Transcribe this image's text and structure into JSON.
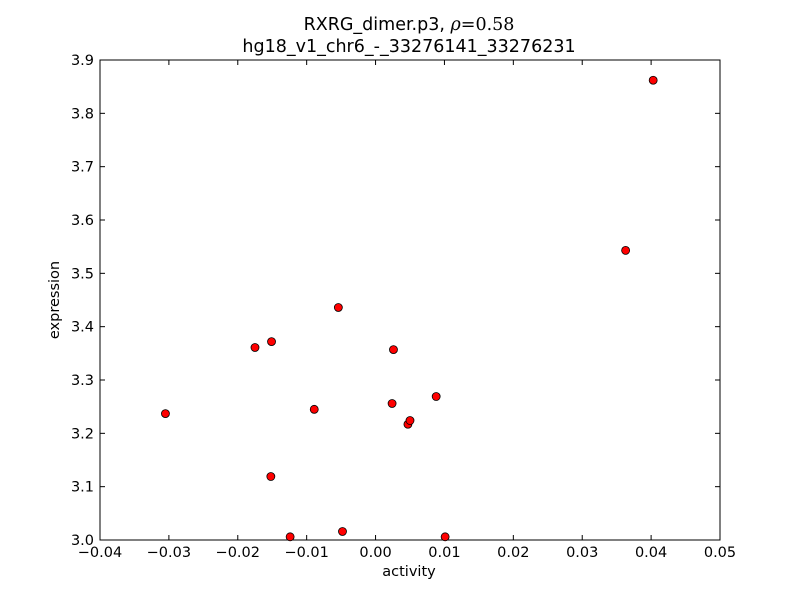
{
  "chart_data": {
    "type": "scatter",
    "title": {
      "line1_prefix": "RXRG_dimer.p3, ",
      "rho_symbol": "ρ",
      "rho_equals": "=",
      "rho_value": "0.58",
      "line2": "hg18_v1_chr6_-_33276141_33276231"
    },
    "xlabel": "activity",
    "ylabel": "expression",
    "xlim": [
      -0.04,
      0.05
    ],
    "ylim": [
      3.0,
      3.9
    ],
    "xticks": [
      -0.04,
      -0.03,
      -0.02,
      -0.01,
      0.0,
      0.01,
      0.02,
      0.03,
      0.04,
      0.05
    ],
    "xtick_labels": [
      "−0.04",
      "−0.03",
      "−0.02",
      "−0.01",
      "0.00",
      "0.01",
      "0.02",
      "0.03",
      "0.04",
      "0.05"
    ],
    "yticks": [
      3.0,
      3.1,
      3.2,
      3.3,
      3.4,
      3.5,
      3.6,
      3.7,
      3.8,
      3.9
    ],
    "ytick_labels": [
      "3.0",
      "3.1",
      "3.2",
      "3.3",
      "3.4",
      "3.5",
      "3.6",
      "3.7",
      "3.8",
      "3.9"
    ],
    "grid": false,
    "marker_color": "#ff0000",
    "marker_edge_color": "#000000",
    "points": [
      {
        "x": -0.0305,
        "y": 3.237
      },
      {
        "x": -0.0175,
        "y": 3.361
      },
      {
        "x": -0.0151,
        "y": 3.372
      },
      {
        "x": -0.0152,
        "y": 3.119
      },
      {
        "x": -0.0124,
        "y": 3.006
      },
      {
        "x": -0.0089,
        "y": 3.245
      },
      {
        "x": -0.0054,
        "y": 3.436
      },
      {
        "x": -0.0048,
        "y": 3.016
      },
      {
        "x": 0.0024,
        "y": 3.256
      },
      {
        "x": 0.0026,
        "y": 3.357
      },
      {
        "x": 0.0047,
        "y": 3.217
      },
      {
        "x": 0.005,
        "y": 3.224
      },
      {
        "x": 0.0088,
        "y": 3.269
      },
      {
        "x": 0.0101,
        "y": 3.006
      },
      {
        "x": 0.0363,
        "y": 3.543
      },
      {
        "x": 0.0403,
        "y": 3.862
      }
    ]
  }
}
